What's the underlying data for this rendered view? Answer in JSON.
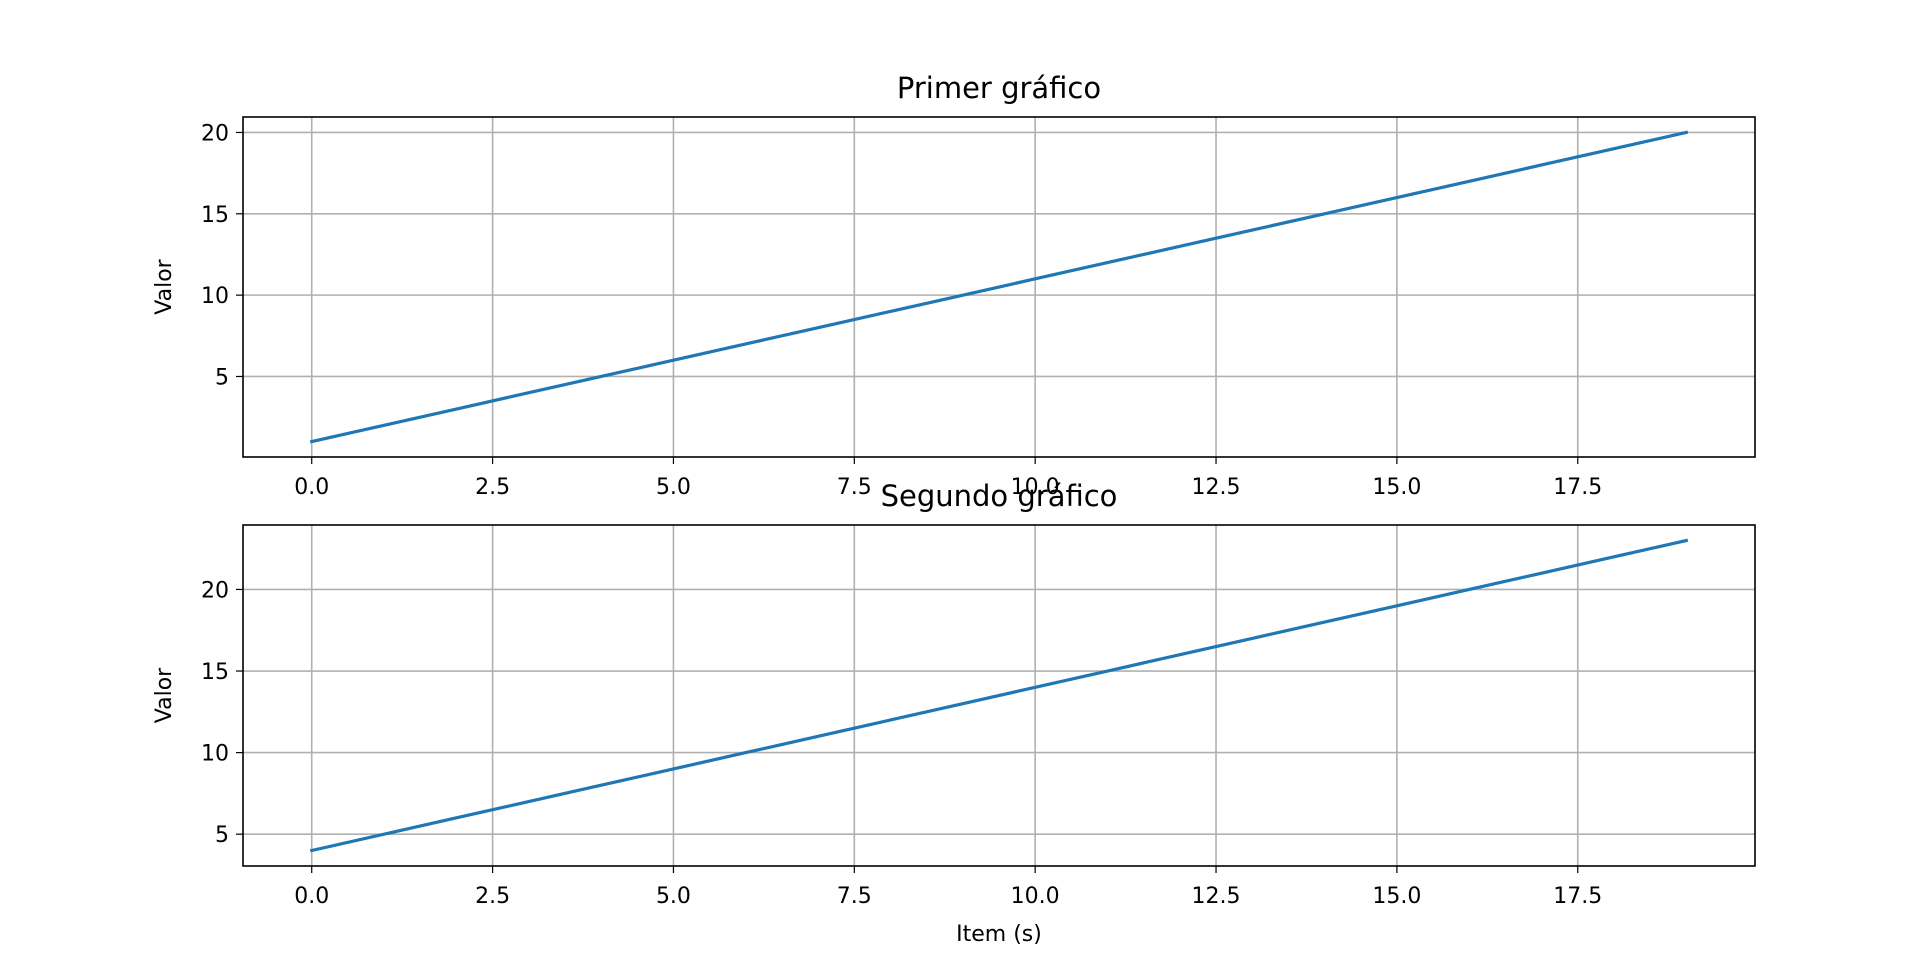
{
  "chart_data": [
    {
      "type": "line",
      "title": "Primer gráfico",
      "xlabel": "",
      "ylabel": "Valor",
      "xlim": [
        -0.95,
        19.95
      ],
      "ylim": [
        0.05,
        20.95
      ],
      "xticks": [
        0.0,
        2.5,
        5.0,
        7.5,
        10.0,
        12.5,
        15.0,
        17.5
      ],
      "xtick_labels": [
        "0.0",
        "2.5",
        "5.0",
        "7.5",
        "10.0",
        "12.5",
        "15.0",
        "17.5"
      ],
      "yticks": [
        5,
        10,
        15,
        20
      ],
      "ytick_labels": [
        "5",
        "10",
        "15",
        "20"
      ],
      "grid": true,
      "series": [
        {
          "color": "#1f77b4",
          "x": [
            0,
            1,
            2,
            3,
            4,
            5,
            6,
            7,
            8,
            9,
            10,
            11,
            12,
            13,
            14,
            15,
            16,
            17,
            18,
            19
          ],
          "y": [
            1,
            2,
            3,
            4,
            5,
            6,
            7,
            8,
            9,
            10,
            11,
            12,
            13,
            14,
            15,
            16,
            17,
            18,
            19,
            20
          ]
        }
      ]
    },
    {
      "type": "line",
      "title": "Segundo gráfico",
      "xlabel": "Item (s)",
      "ylabel": "Valor",
      "xlim": [
        -0.95,
        19.95
      ],
      "ylim": [
        3.05,
        23.95
      ],
      "xticks": [
        0.0,
        2.5,
        5.0,
        7.5,
        10.0,
        12.5,
        15.0,
        17.5
      ],
      "xtick_labels": [
        "0.0",
        "2.5",
        "5.0",
        "7.5",
        "10.0",
        "12.5",
        "15.0",
        "17.5"
      ],
      "yticks": [
        5,
        10,
        15,
        20
      ],
      "ytick_labels": [
        "5",
        "10",
        "15",
        "20"
      ],
      "grid": true,
      "series": [
        {
          "color": "#1f77b4",
          "x": [
            0,
            1,
            2,
            3,
            4,
            5,
            6,
            7,
            8,
            9,
            10,
            11,
            12,
            13,
            14,
            15,
            16,
            17,
            18,
            19
          ],
          "y": [
            4,
            5,
            6,
            7,
            8,
            9,
            10,
            11,
            12,
            13,
            14,
            15,
            16,
            17,
            18,
            19,
            20,
            21,
            22,
            23
          ]
        }
      ]
    }
  ]
}
